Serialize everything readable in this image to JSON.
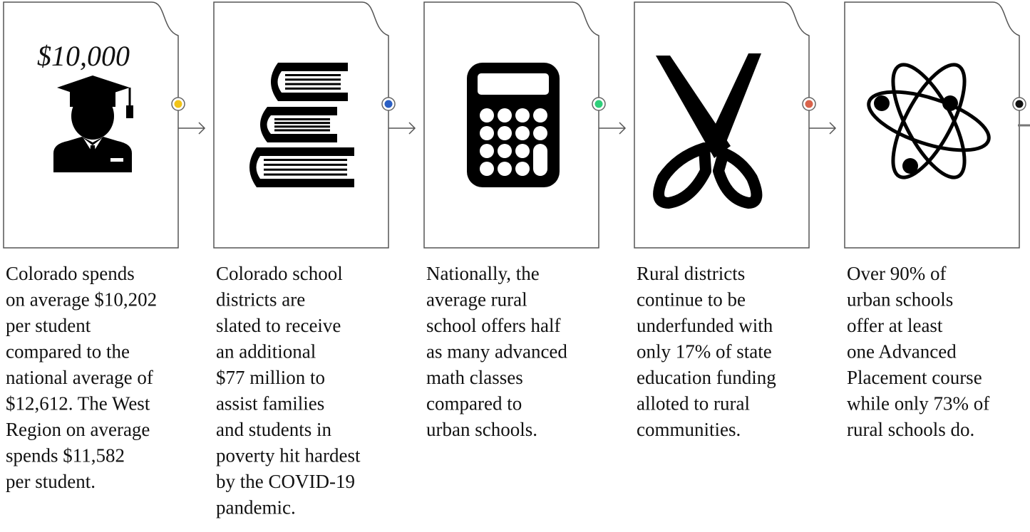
{
  "cards": [
    {
      "label": "$10,000",
      "color": "#f2c418",
      "lines": [
        "Colorado spends",
        "on average $10,202",
        "per student",
        "compared to the",
        "national average of",
        "$12,612. The West",
        "Region on average",
        "spends $11,582",
        "per student."
      ]
    },
    {
      "color": "#2b5fc4",
      "lines": [
        "Colorado school",
        "districts are",
        "slated to receive",
        "an additional",
        "$77 million to",
        "assist families",
        "and students in",
        "poverty hit hardest",
        "by the COVID-19",
        "pandemic."
      ]
    },
    {
      "color": "#2fcf7a",
      "lines": [
        "Nationally, the",
        "average rural",
        "school offers half",
        "as many advanced",
        "math classes",
        "compared to",
        "urban schools."
      ]
    },
    {
      "color": "#d9634b",
      "lines": [
        "Rural districts",
        "continue to be",
        "underfunded with",
        "only 17% of state",
        "education funding",
        "alloted to rural",
        "communities."
      ]
    },
    {
      "color": "#111111",
      "lines": [
        "Over 90% of",
        "urban schools",
        "offer at least",
        "one Advanced",
        "Placement course",
        "while only 73% of",
        "rural schools do."
      ]
    }
  ]
}
